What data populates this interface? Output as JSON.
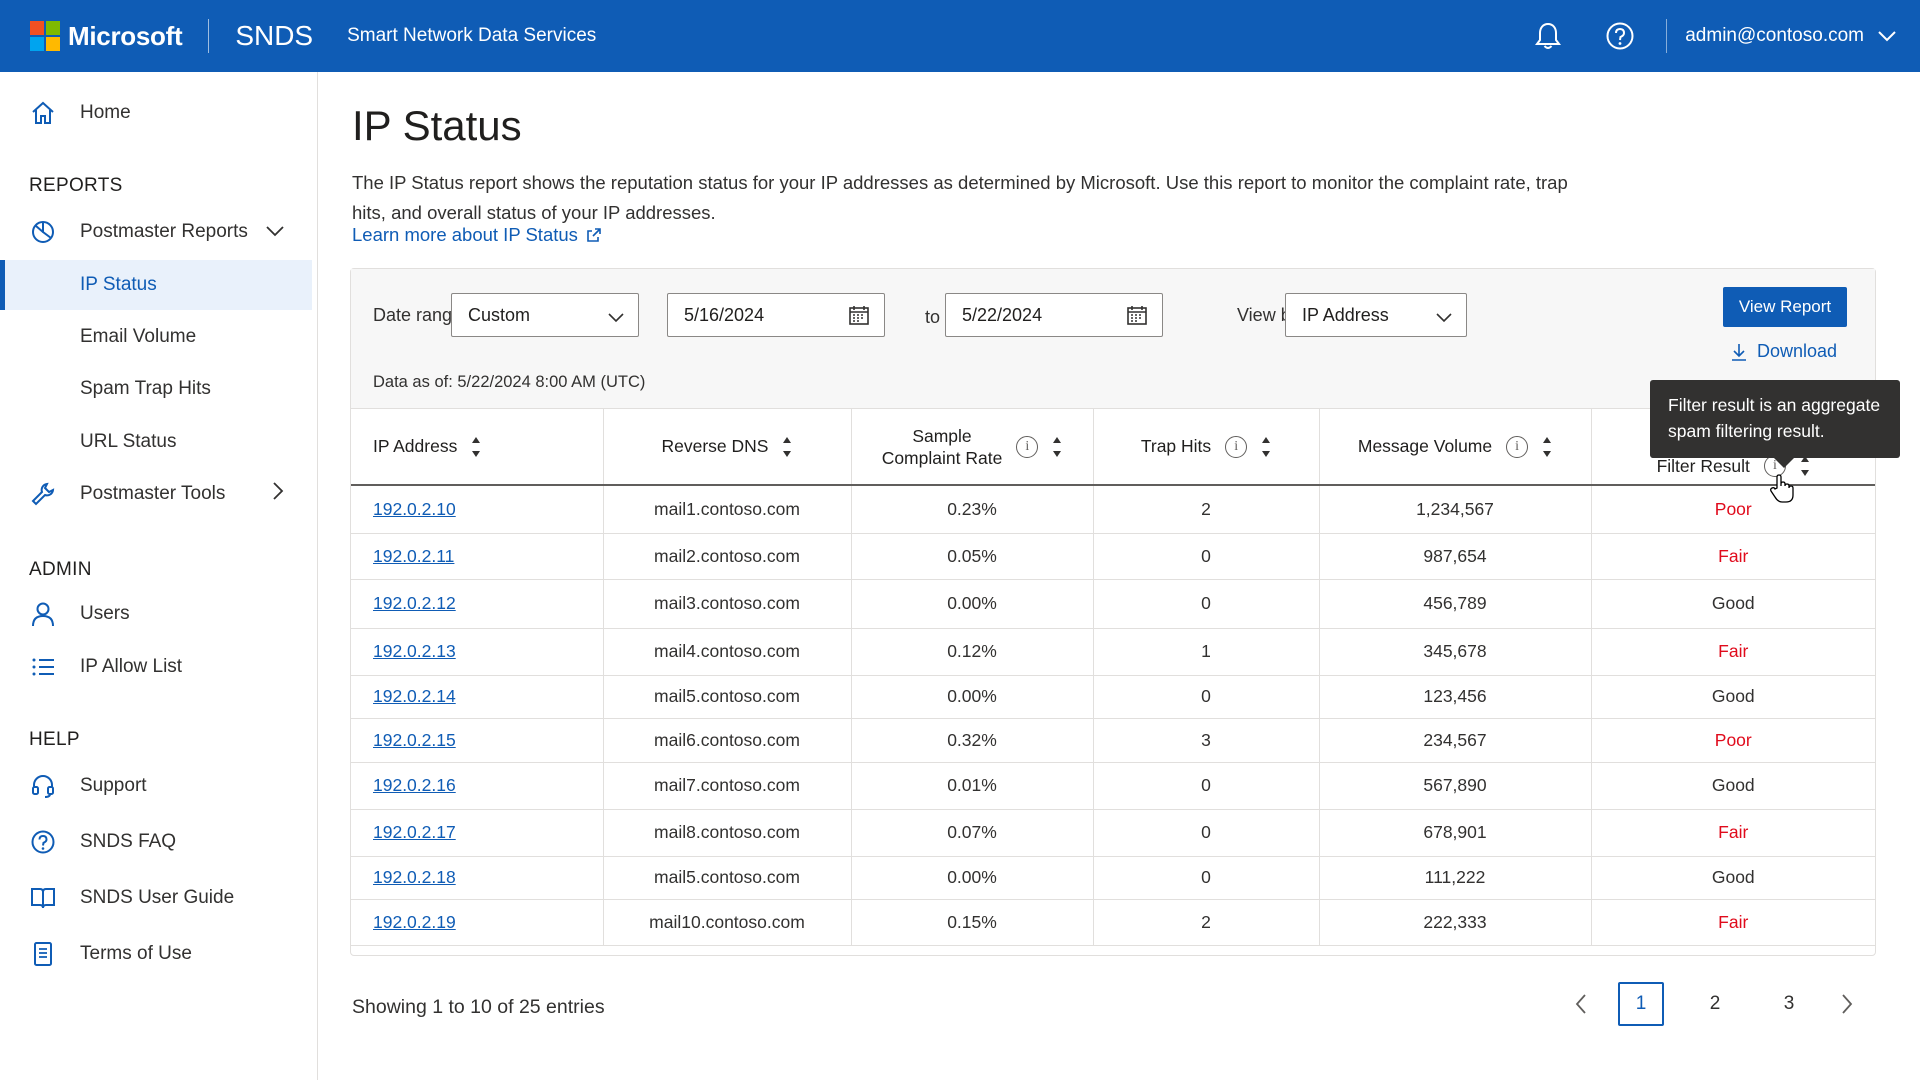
{
  "header": {
    "brand": "Microsoft",
    "product": "SNDS",
    "product_full": "Smart Network Data Services",
    "account": "admin@contoso.com"
  },
  "sidebar": {
    "home": "Home",
    "reports_heading": "REPORTS",
    "postmaster_reports": "Postmaster Reports",
    "report_items": [
      "IP Status",
      "Email Volume",
      "Spam Trap Hits",
      "URL Status"
    ],
    "postmaster_tools": "Postmaster Tools",
    "admin_heading": "ADMIN",
    "admin_items": [
      "Users",
      "IP Allow List"
    ],
    "help_heading": "HELP",
    "help_items": [
      "Support",
      "SNDS FAQ",
      "SNDS User Guide",
      "Terms of Use"
    ]
  },
  "page": {
    "title": "IP Status",
    "description": "The IP Status report shows the reputation status for your IP addresses as determined by Microsoft. Use this report to monitor the complaint rate, trap hits, and overall status of your IP addresses.",
    "learn_more": "Learn more about IP Status"
  },
  "filters": {
    "date_range_label": "Date range:",
    "date_range_value": "Custom",
    "start_date": "5/16/2024",
    "to_label": "to",
    "end_date": "5/22/2024",
    "view_by_label": "View by:",
    "view_by_value": "IP Address",
    "view_report": "View Report",
    "download": "Download",
    "data_as_of": "Data as of: 5/22/2024 8:00 AM (UTC)"
  },
  "table": {
    "columns": [
      "IP Address",
      "Reverse DNS",
      "Sample Complaint Rate",
      "Trap Hits",
      "Message Volume",
      "Filter Result"
    ],
    "col_sample_1": "Sample",
    "col_sample_2": "Complaint Rate",
    "rows": [
      {
        "ip": "192.0.2.10",
        "dns": "mail1.contoso.com",
        "rate": "0.23%",
        "traps": "2",
        "volume": "1,234,567",
        "result": "Poor"
      },
      {
        "ip": "192.0.2.11",
        "dns": "mail2.contoso.com",
        "rate": "0.05%",
        "traps": "0",
        "volume": "987,654",
        "result": "Fair"
      },
      {
        "ip": "192.0.2.12",
        "dns": "mail3.contoso.com",
        "rate": "0.00%",
        "traps": "0",
        "volume": "456,789",
        "result": "Good"
      },
      {
        "ip": "192.0.2.13",
        "dns": "mail4.contoso.com",
        "rate": "0.12%",
        "traps": "1",
        "volume": "345,678",
        "result": "Fair"
      },
      {
        "ip": "192.0.2.14",
        "dns": "mail5.contoso.com",
        "rate": "0.00%",
        "traps": "0",
        "volume": "123,456",
        "result": "Good"
      },
      {
        "ip": "192.0.2.15",
        "dns": "mail6.contoso.com",
        "rate": "0.32%",
        "traps": "3",
        "volume": "234,567",
        "result": "Poor"
      },
      {
        "ip": "192.0.2.16",
        "dns": "mail7.contoso.com",
        "rate": "0.01%",
        "traps": "0",
        "volume": "567,890",
        "result": "Good"
      },
      {
        "ip": "192.0.2.17",
        "dns": "mail8.contoso.com",
        "rate": "0.07%",
        "traps": "0",
        "volume": "678,901",
        "result": "Fair"
      },
      {
        "ip": "192.0.2.18",
        "dns": "mail5.contoso.com",
        "rate": "0.00%",
        "traps": "0",
        "volume": "111,222",
        "result": "Good"
      },
      {
        "ip": "192.0.2.19",
        "dns": "mail10.contoso.com",
        "rate": "0.15%",
        "traps": "2",
        "volume": "222,333",
        "result": "Fair"
      }
    ]
  },
  "tooltip": "Filter result is an aggregate spam filtering result.",
  "pagination": {
    "showing": "Showing 1 to 10 of 25 entries",
    "pages": [
      "1",
      "2",
      "3"
    ],
    "current": "1"
  },
  "colors": {
    "brand_blue": "#0f5cb5",
    "status_red": "#e00b1c"
  },
  "icons": [
    "bell-icon",
    "help-icon",
    "chevron-down-icon",
    "home-icon",
    "chart-icon",
    "wrench-icon",
    "user-icon",
    "list-icon",
    "headset-icon",
    "question-icon",
    "book-icon",
    "document-icon",
    "calendar-icon",
    "download-icon",
    "info-icon",
    "sort-icon",
    "external-link-icon"
  ]
}
